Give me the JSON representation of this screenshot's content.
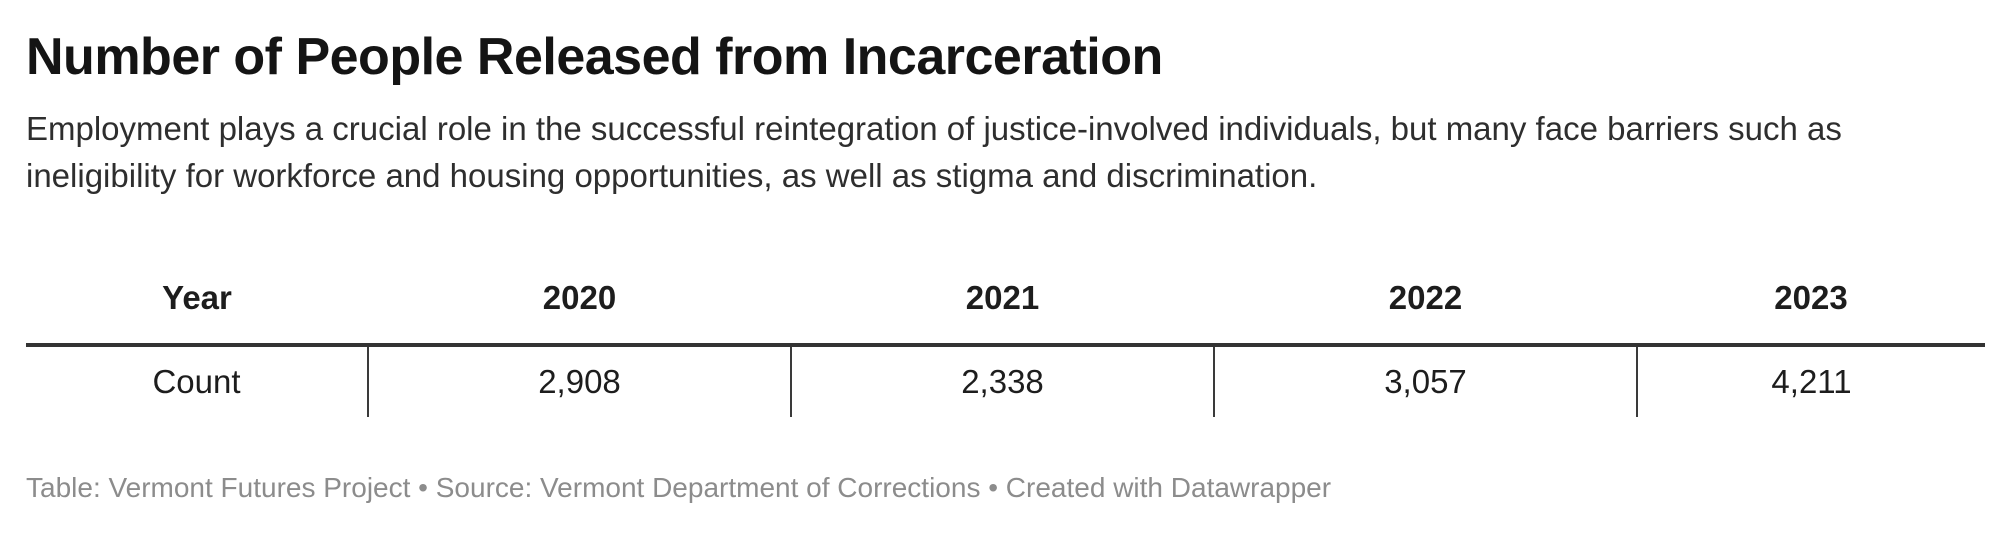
{
  "header": {
    "title": "Number of People Released from Incarceration",
    "description": "Employment plays a crucial role in the successful reintegration of justice-involved individuals, but many face barriers such as ineligibility for workforce and housing opportunities, as well as stigma and discrimination."
  },
  "chart_data": {
    "type": "table",
    "title": "Number of People Released from Incarceration",
    "columns": [
      "Year",
      "2020",
      "2021",
      "2022",
      "2023"
    ],
    "rows": [
      [
        "Count",
        "2,908",
        "2,338",
        "3,057",
        "4,211"
      ]
    ],
    "values_numeric": {
      "categories": [
        "2020",
        "2021",
        "2022",
        "2023"
      ],
      "counts": [
        2908,
        2338,
        3057,
        4211
      ]
    },
    "layout_hints": {
      "header_separator": "thick horizontal rule below header row",
      "column_dividers": "vertical rules between value cells in body row only",
      "grid": "off",
      "alignment": "center"
    }
  },
  "footer": {
    "text": "Table: Vermont Futures Project • Source: Vermont Department of Corrections • Created with Datawrapper"
  },
  "colors": {
    "background": "#ffffff",
    "text": "#1d1d1d",
    "rule": "#333333",
    "footer_text": "#8c8c8c"
  }
}
